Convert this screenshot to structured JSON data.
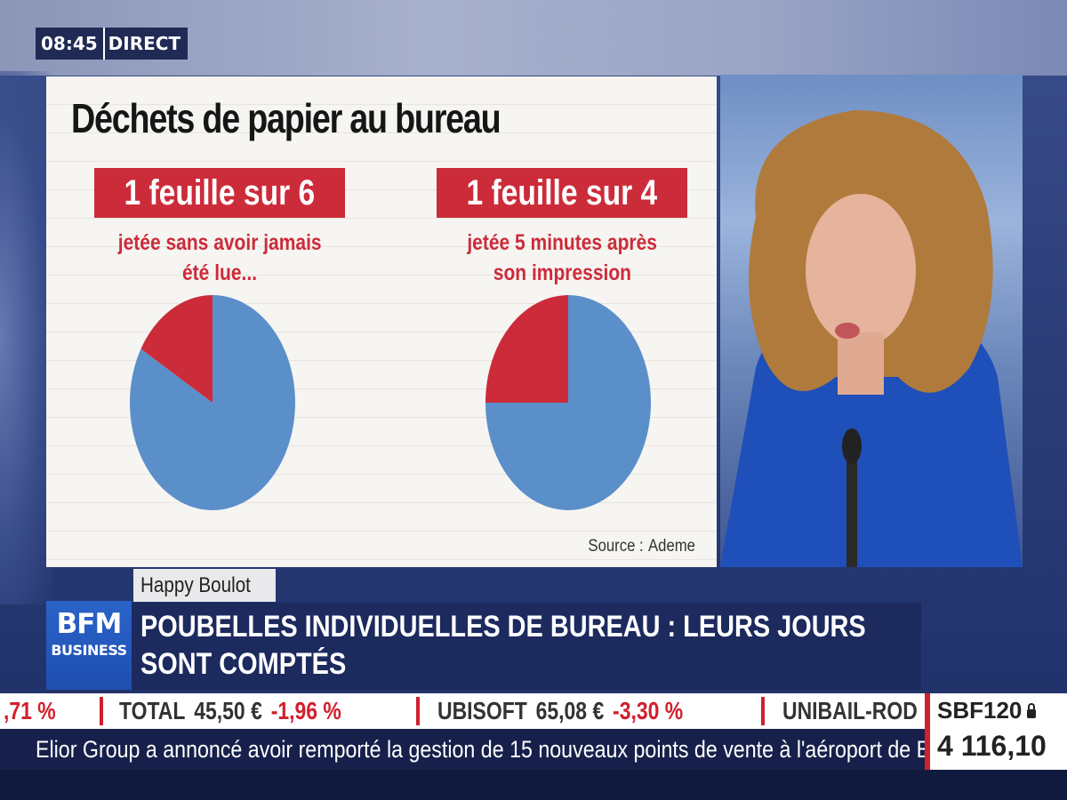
{
  "clock": {
    "time": "08:45",
    "live": "DIRECT"
  },
  "chart_panel": {
    "title": "Déchets de papier au bureau",
    "source_label": "Source :",
    "source_value": "Ademe"
  },
  "chart_data": [
    {
      "type": "pie",
      "title": "1 feuille sur 6",
      "subtitle_lines": [
        "jetée sans avoir jamais",
        "été lue..."
      ],
      "slices": [
        {
          "value": 0.1667,
          "color": "#cc2b3a"
        },
        {
          "value": 0.8333,
          "color": "#5b8fca"
        }
      ]
    },
    {
      "type": "pie",
      "title": "1 feuille sur 4",
      "subtitle_lines": [
        "jetée 5 minutes après",
        "son impression"
      ],
      "slices": [
        {
          "value": 0.25,
          "color": "#cc2b3a"
        },
        {
          "value": 0.75,
          "color": "#5b8fca"
        }
      ]
    }
  ],
  "lower_third": {
    "show_name": "Happy Boulot",
    "logo_line1": "BFM",
    "logo_line2": "BUSINESS",
    "headline_line1": "POUBELLES INDIVIDUELLES DE BUREAU : LEURS JOURS",
    "headline_line2": "SONT COMPTÉS"
  },
  "ticker": {
    "items": [
      {
        "name": "",
        "price": "",
        "change": ",71 %"
      },
      {
        "name": "TOTAL",
        "price": "45,50 €",
        "change": "-1,96 %"
      },
      {
        "name": "UBISOFT",
        "price": "65,08 €",
        "change": "-3,30 %"
      },
      {
        "name": "UNIBAIL-ROD",
        "price": "",
        "change": ""
      }
    ],
    "news": "Elior Group a annoncé avoir remporté la gestion de 15 nouveaux points de vente à l'aéroport de Barcelone."
  },
  "index": {
    "name": "SBF120",
    "value": "4 116,10"
  },
  "colors": {
    "accent_red": "#cc2b3a",
    "pie_blue": "#5b8fca",
    "brand_blue": "#1c2a5e"
  }
}
